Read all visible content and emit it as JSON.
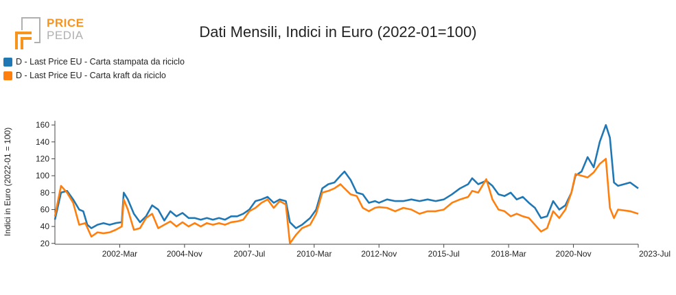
{
  "logo": {
    "line1": "PRICE",
    "line2": "PEDIA"
  },
  "colors": {
    "series1": "#1f77b4",
    "series2": "#ff7f0e",
    "axis": "#444444",
    "logo_orange": "#f7941d",
    "logo_grey": "#b0b0b0"
  },
  "chart_data": {
    "type": "line",
    "title": "Dati Mensili, Indici in Euro (2022-01=100)",
    "ylabel": "Indici in Euro (2022-01 = 100)",
    "xlabel": "",
    "ylim": [
      19,
      165
    ],
    "x_start": "1999-07",
    "x_end": "2023-07",
    "x_ticks": [
      "2002-Mar",
      "2004-Nov",
      "2007-Jul",
      "2010-Mar",
      "2012-Nov",
      "2015-Jul",
      "2018-Mar",
      "2020-Nov",
      "2023-Jul"
    ],
    "y_ticks": [
      20,
      40,
      60,
      80,
      100,
      120,
      140,
      160
    ],
    "legend_position": "top-left",
    "series": [
      {
        "name": "D - Last Price EU - Carta stampata da riciclo",
        "color": "#1f77b4",
        "points": [
          [
            "1999-07",
            48
          ],
          [
            "1999-10",
            80
          ],
          [
            "2000-01",
            82
          ],
          [
            "2000-04",
            72
          ],
          [
            "2000-07",
            60
          ],
          [
            "2000-09",
            58
          ],
          [
            "2000-11",
            42
          ],
          [
            "2001-01",
            38
          ],
          [
            "2001-04",
            42
          ],
          [
            "2001-07",
            44
          ],
          [
            "2001-10",
            42
          ],
          [
            "2002-01",
            44
          ],
          [
            "2002-04",
            45
          ],
          [
            "2002-05",
            80
          ],
          [
            "2002-07",
            72
          ],
          [
            "2002-10",
            55
          ],
          [
            "2003-01",
            45
          ],
          [
            "2003-04",
            52
          ],
          [
            "2003-07",
            65
          ],
          [
            "2003-10",
            60
          ],
          [
            "2004-01",
            47
          ],
          [
            "2004-04",
            58
          ],
          [
            "2004-07",
            52
          ],
          [
            "2004-10",
            56
          ],
          [
            "2005-01",
            50
          ],
          [
            "2005-04",
            50
          ],
          [
            "2005-07",
            48
          ],
          [
            "2005-10",
            50
          ],
          [
            "2006-01",
            48
          ],
          [
            "2006-04",
            50
          ],
          [
            "2006-07",
            48
          ],
          [
            "2006-10",
            52
          ],
          [
            "2007-01",
            52
          ],
          [
            "2007-04",
            55
          ],
          [
            "2007-07",
            60
          ],
          [
            "2007-10",
            70
          ],
          [
            "2008-01",
            72
          ],
          [
            "2008-04",
            75
          ],
          [
            "2008-07",
            68
          ],
          [
            "2008-10",
            72
          ],
          [
            "2009-01",
            70
          ],
          [
            "2009-03",
            45
          ],
          [
            "2009-06",
            38
          ],
          [
            "2009-09",
            42
          ],
          [
            "2010-01",
            50
          ],
          [
            "2010-04",
            60
          ],
          [
            "2010-07",
            85
          ],
          [
            "2010-10",
            90
          ],
          [
            "2011-01",
            92
          ],
          [
            "2011-04",
            100
          ],
          [
            "2011-06",
            105
          ],
          [
            "2011-09",
            95
          ],
          [
            "2011-12",
            80
          ],
          [
            "2012-03",
            78
          ],
          [
            "2012-06",
            68
          ],
          [
            "2012-09",
            70
          ],
          [
            "2012-11",
            68
          ],
          [
            "2013-03",
            72
          ],
          [
            "2013-07",
            70
          ],
          [
            "2013-11",
            70
          ],
          [
            "2014-03",
            72
          ],
          [
            "2014-07",
            70
          ],
          [
            "2014-11",
            72
          ],
          [
            "2015-03",
            70
          ],
          [
            "2015-07",
            72
          ],
          [
            "2015-11",
            78
          ],
          [
            "2016-03",
            85
          ],
          [
            "2016-07",
            90
          ],
          [
            "2016-09",
            97
          ],
          [
            "2016-12",
            90
          ],
          [
            "2017-04",
            94
          ],
          [
            "2017-07",
            88
          ],
          [
            "2017-10",
            78
          ],
          [
            "2018-01",
            76
          ],
          [
            "2018-04",
            80
          ],
          [
            "2018-07",
            72
          ],
          [
            "2018-10",
            75
          ],
          [
            "2019-01",
            68
          ],
          [
            "2019-04",
            62
          ],
          [
            "2019-07",
            50
          ],
          [
            "2019-10",
            52
          ],
          [
            "2020-01",
            70
          ],
          [
            "2020-04",
            60
          ],
          [
            "2020-07",
            65
          ],
          [
            "2020-10",
            80
          ],
          [
            "2020-12",
            100
          ],
          [
            "2021-03",
            105
          ],
          [
            "2021-06",
            122
          ],
          [
            "2021-09",
            110
          ],
          [
            "2021-12",
            140
          ],
          [
            "2022-03",
            160
          ],
          [
            "2022-05",
            145
          ],
          [
            "2022-07",
            92
          ],
          [
            "2022-09",
            88
          ],
          [
            "2022-12",
            90
          ],
          [
            "2023-03",
            92
          ],
          [
            "2023-07",
            85
          ]
        ]
      },
      {
        "name": "D - Last Price EU - Carta kraft da riciclo",
        "color": "#ff7f0e",
        "points": [
          [
            "1999-07",
            52
          ],
          [
            "1999-10",
            88
          ],
          [
            "2000-01",
            80
          ],
          [
            "2000-04",
            68
          ],
          [
            "2000-07",
            42
          ],
          [
            "2000-10",
            44
          ],
          [
            "2001-01",
            28
          ],
          [
            "2001-04",
            33
          ],
          [
            "2001-07",
            32
          ],
          [
            "2001-10",
            33
          ],
          [
            "2002-01",
            36
          ],
          [
            "2002-04",
            40
          ],
          [
            "2002-05",
            72
          ],
          [
            "2002-07",
            60
          ],
          [
            "2002-10",
            36
          ],
          [
            "2003-01",
            38
          ],
          [
            "2003-04",
            50
          ],
          [
            "2003-07",
            55
          ],
          [
            "2003-10",
            38
          ],
          [
            "2004-01",
            42
          ],
          [
            "2004-04",
            46
          ],
          [
            "2004-07",
            40
          ],
          [
            "2004-10",
            45
          ],
          [
            "2005-01",
            40
          ],
          [
            "2005-04",
            44
          ],
          [
            "2005-07",
            40
          ],
          [
            "2005-10",
            44
          ],
          [
            "2006-01",
            42
          ],
          [
            "2006-04",
            44
          ],
          [
            "2006-07",
            42
          ],
          [
            "2006-10",
            45
          ],
          [
            "2007-01",
            46
          ],
          [
            "2007-04",
            48
          ],
          [
            "2007-07",
            58
          ],
          [
            "2007-10",
            62
          ],
          [
            "2008-01",
            68
          ],
          [
            "2008-04",
            72
          ],
          [
            "2008-07",
            62
          ],
          [
            "2008-10",
            70
          ],
          [
            "2009-01",
            66
          ],
          [
            "2009-03",
            20
          ],
          [
            "2009-06",
            30
          ],
          [
            "2009-09",
            38
          ],
          [
            "2010-01",
            42
          ],
          [
            "2010-04",
            55
          ],
          [
            "2010-07",
            80
          ],
          [
            "2010-10",
            82
          ],
          [
            "2011-01",
            85
          ],
          [
            "2011-04",
            90
          ],
          [
            "2011-06",
            85
          ],
          [
            "2011-09",
            78
          ],
          [
            "2011-12",
            76
          ],
          [
            "2012-03",
            62
          ],
          [
            "2012-06",
            58
          ],
          [
            "2012-09",
            62
          ],
          [
            "2012-11",
            63
          ],
          [
            "2013-03",
            62
          ],
          [
            "2013-07",
            58
          ],
          [
            "2013-11",
            62
          ],
          [
            "2014-03",
            60
          ],
          [
            "2014-07",
            55
          ],
          [
            "2014-11",
            58
          ],
          [
            "2015-03",
            58
          ],
          [
            "2015-07",
            60
          ],
          [
            "2015-11",
            68
          ],
          [
            "2016-03",
            72
          ],
          [
            "2016-07",
            75
          ],
          [
            "2016-09",
            82
          ],
          [
            "2016-12",
            80
          ],
          [
            "2017-04",
            96
          ],
          [
            "2017-07",
            72
          ],
          [
            "2017-10",
            60
          ],
          [
            "2018-01",
            58
          ],
          [
            "2018-04",
            52
          ],
          [
            "2018-07",
            55
          ],
          [
            "2018-10",
            52
          ],
          [
            "2019-01",
            50
          ],
          [
            "2019-04",
            42
          ],
          [
            "2019-07",
            34
          ],
          [
            "2019-10",
            38
          ],
          [
            "2020-01",
            58
          ],
          [
            "2020-04",
            50
          ],
          [
            "2020-07",
            60
          ],
          [
            "2020-10",
            80
          ],
          [
            "2020-12",
            102
          ],
          [
            "2021-03",
            100
          ],
          [
            "2021-06",
            98
          ],
          [
            "2021-09",
            104
          ],
          [
            "2021-12",
            114
          ],
          [
            "2022-03",
            120
          ],
          [
            "2022-05",
            62
          ],
          [
            "2022-07",
            50
          ],
          [
            "2022-09",
            60
          ],
          [
            "2022-12",
            59
          ],
          [
            "2023-03",
            58
          ],
          [
            "2023-07",
            55
          ]
        ]
      }
    ]
  }
}
